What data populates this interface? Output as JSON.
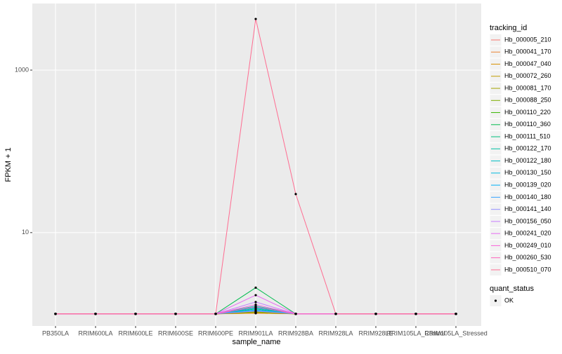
{
  "chart_data": {
    "type": "line",
    "log_scale": true,
    "grid": true,
    "x_label": "sample_name",
    "y_label": "FPKM + 1",
    "categories": [
      "PB350LA",
      "RRIM600LA",
      "RRIM600LE",
      "RRIM600SE",
      "RRIM600PE",
      "RRIM901LA",
      "RRIM928BA",
      "RRIM928LA",
      "RRIM928LE",
      "RRIM105LA_Control",
      "RRIM105LA_Stressed"
    ],
    "ylim": [
      0.71,
      6600
    ],
    "yticks": [
      10,
      1000
    ],
    "legend_title": "tracking_id",
    "point_color": "#000000",
    "series": [
      {
        "name": "Hb_000005_210",
        "color": "#F8766D",
        "values": [
          1,
          1,
          1,
          1,
          1,
          1.02,
          1,
          1,
          1,
          1,
          1
        ]
      },
      {
        "name": "Hb_000041_170",
        "color": "#EA8331",
        "values": [
          1,
          1,
          1,
          1,
          1,
          1.03,
          1,
          1,
          1,
          1,
          1
        ]
      },
      {
        "name": "Hb_000047_040",
        "color": "#D89000",
        "values": [
          1,
          1,
          1,
          1,
          1,
          1.02,
          1,
          1,
          1,
          1,
          1
        ]
      },
      {
        "name": "Hb_000072_260",
        "color": "#C09B00",
        "values": [
          1,
          1,
          1,
          1,
          1,
          1.04,
          1,
          1,
          1,
          1,
          1
        ]
      },
      {
        "name": "Hb_000081_170",
        "color": "#A3A500",
        "values": [
          1,
          1,
          1,
          1,
          1,
          1.05,
          1,
          1,
          1,
          1,
          1
        ]
      },
      {
        "name": "Hb_000088_250",
        "color": "#7CAE00",
        "values": [
          1,
          1,
          1,
          1,
          1,
          1.06,
          1,
          1,
          1,
          1,
          1
        ]
      },
      {
        "name": "Hb_000110_220",
        "color": "#39B600",
        "values": [
          1,
          1,
          1,
          1,
          1,
          1.08,
          1,
          1,
          1,
          1,
          1
        ]
      },
      {
        "name": "Hb_000110_360",
        "color": "#00BB4E",
        "values": [
          1,
          1,
          1,
          1,
          1,
          2.1,
          1,
          1,
          1,
          1,
          1
        ]
      },
      {
        "name": "Hb_000111_510",
        "color": "#00BF7D",
        "values": [
          1,
          1,
          1,
          1,
          1,
          1.15,
          1,
          1,
          1,
          1,
          1
        ]
      },
      {
        "name": "Hb_000122_170",
        "color": "#00C1A3",
        "values": [
          1,
          1,
          1,
          1,
          1,
          1.25,
          1,
          1,
          1,
          1,
          1
        ]
      },
      {
        "name": "Hb_000122_180",
        "color": "#00BFC4",
        "values": [
          1,
          1,
          1,
          1,
          1,
          1.18,
          1,
          1,
          1,
          1,
          1
        ]
      },
      {
        "name": "Hb_000130_150",
        "color": "#00BAE0",
        "values": [
          1,
          1,
          1,
          1,
          1,
          1.2,
          1,
          1,
          1,
          1,
          1
        ]
      },
      {
        "name": "Hb_000139_020",
        "color": "#00B0F6",
        "values": [
          1,
          1,
          1,
          1,
          1,
          1.12,
          1,
          1,
          1,
          1,
          1
        ]
      },
      {
        "name": "Hb_000140_180",
        "color": "#35A2FF",
        "values": [
          1,
          1,
          1,
          1,
          1,
          1.1,
          1,
          1,
          1,
          1,
          1
        ]
      },
      {
        "name": "Hb_000141_140",
        "color": "#9590FF",
        "values": [
          1,
          1,
          1,
          1,
          1,
          1.08,
          1,
          1,
          1,
          1,
          1
        ]
      },
      {
        "name": "Hb_000156_050",
        "color": "#C77CFF",
        "values": [
          1,
          1,
          1,
          1,
          1,
          1.4,
          1,
          1,
          1,
          1,
          1
        ]
      },
      {
        "name": "Hb_000241_020",
        "color": "#E76BF3",
        "values": [
          1,
          1,
          1,
          1,
          1,
          1.7,
          1,
          1,
          1,
          1,
          1
        ]
      },
      {
        "name": "Hb_000249_010",
        "color": "#FA62DB",
        "values": [
          1,
          1,
          1,
          1,
          1,
          1.3,
          1,
          1,
          1,
          1,
          1
        ]
      },
      {
        "name": "Hb_000260_530",
        "color": "#FF62BC",
        "values": [
          1,
          1,
          1,
          1,
          1,
          1.22,
          1,
          1,
          1,
          1,
          1
        ]
      },
      {
        "name": "Hb_000510_070",
        "color": "#FF6C91",
        "values": [
          1,
          1,
          1,
          1,
          1,
          4260,
          29.8,
          1,
          1,
          1,
          1
        ]
      }
    ],
    "legend2": {
      "title": "quant_status",
      "entries": [
        "OK"
      ]
    }
  }
}
